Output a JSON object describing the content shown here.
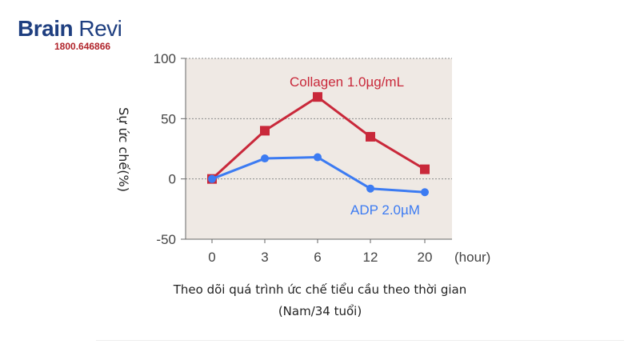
{
  "brand": {
    "name_bold": "Brain",
    "name_light": " Revi",
    "phone": "1800.646866"
  },
  "caption": {
    "line1": "Theo dõi quá trình ức chế tiểu cầu theo thời gian",
    "line2": "(Nam/34 tuổi)"
  },
  "chart_data": {
    "type": "line",
    "categories": [
      "0",
      "3",
      "6",
      "12",
      "20"
    ],
    "x_unit": "(hour)",
    "ylabel": "Sự ức chế(%)",
    "ylim": [
      -50,
      100
    ],
    "yticks": [
      100,
      50,
      0,
      -50
    ],
    "grid": true,
    "series": [
      {
        "name": "Collagen 1.0µg/mL",
        "values": [
          0,
          40,
          68,
          35,
          8
        ],
        "color": "#c9283a",
        "marker": "square"
      },
      {
        "name": "ADP 2.0µM",
        "values": [
          0,
          17,
          18,
          -8,
          -11
        ],
        "color": "#3c7bf2",
        "marker": "circle"
      }
    ]
  }
}
